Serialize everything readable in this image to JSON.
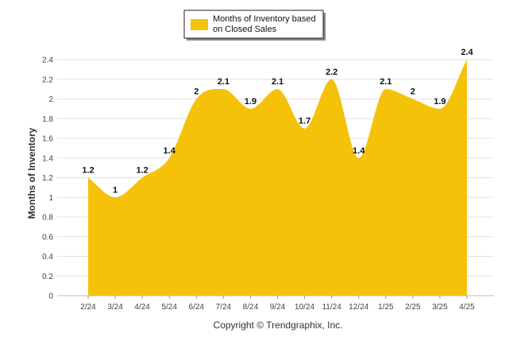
{
  "chart_data": {
    "type": "area",
    "categories": [
      "2/24",
      "3/24",
      "4/24",
      "5/24",
      "6/24",
      "7/24",
      "8/24",
      "9/24",
      "10/24",
      "11/24",
      "12/24",
      "1/25",
      "2/25",
      "3/25",
      "4/25"
    ],
    "series": [
      {
        "name": "Months of Inventory based on Closed Sales",
        "values": [
          1.2,
          1,
          1.2,
          1.4,
          2,
          2.1,
          1.9,
          2.1,
          1.7,
          2.2,
          1.4,
          2.1,
          2,
          1.9,
          2.4
        ],
        "color": "#F5C20A"
      }
    ],
    "data_labels": [
      "1.2",
      "1",
      "1.2",
      "1.4",
      "2",
      "2.1",
      "1.9",
      "2.1",
      "1.7",
      "2.2",
      "1.4",
      "2.1",
      "2",
      "1.9",
      "2.4"
    ],
    "ylabel": "Months of Inventory",
    "xlabel": "",
    "ylim": [
      0,
      2.4
    ],
    "yticks": [
      "0",
      "0.2",
      "0.4",
      "0.6",
      "0.8",
      "1",
      "1.2",
      "1.4",
      "1.6",
      "1.8",
      "2",
      "2.2",
      "2.4"
    ],
    "grid": true,
    "legend_position": "top-center",
    "curve": "smooth"
  },
  "legend": {
    "line1": "Months of Inventory based",
    "line2": "on Closed Sales"
  },
  "credit": "Copyright © Trendgraphix, Inc."
}
